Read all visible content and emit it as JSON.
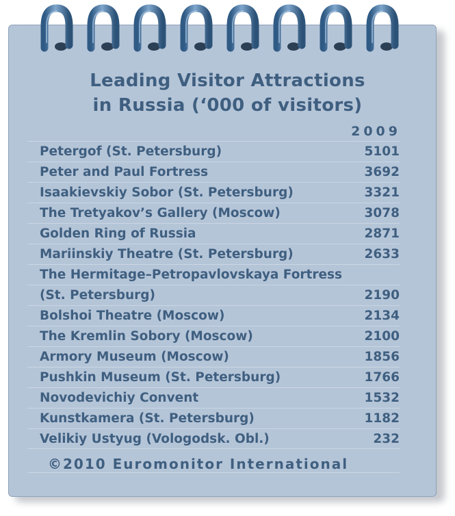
{
  "chart_data": {
    "type": "table",
    "title": "Leading Visitor Attractions in Russia (‘000 of visitors)",
    "title_lines": [
      "Leading Visitor Attractions",
      "in Russia (‘000 of visitors)"
    ],
    "column_header": "2009",
    "rows": [
      {
        "name": "Petergof (St. Petersburg)",
        "value": "5101"
      },
      {
        "name": "Peter and Paul Fortress",
        "value": "3692"
      },
      {
        "name": "Isaakievskiy Sobor (St. Petersburg)",
        "value": "3321"
      },
      {
        "name": "The Tretyakov’s Gallery (Moscow)",
        "value": "3078"
      },
      {
        "name": "Golden Ring of Russia",
        "value": "2871"
      },
      {
        "name": "Mariinskiy Theatre (St. Petersburg)",
        "value": "2633"
      },
      {
        "name": "The Hermitage–Petropavlovskaya Fortress",
        "name_line2": "(St. Petersburg)",
        "value": "2190"
      },
      {
        "name": "Bolshoi Theatre (Moscow)",
        "value": "2134"
      },
      {
        "name": "The Kremlin Sobory (Moscow)",
        "value": "2100"
      },
      {
        "name": "Armory Museum (Moscow)",
        "value": "1856"
      },
      {
        "name": "Pushkin Museum (St. Petersburg)",
        "value": "1766"
      },
      {
        "name": "Novodevichiy Convent",
        "value": "1532"
      },
      {
        "name": "Kunstkamera (St. Petersburg)",
        "value": "1182"
      },
      {
        "name": "Velikiy Ustyug (Vologodsk. Obl.)",
        "value": "232"
      }
    ],
    "footer": "©2010 Euromonitor International"
  },
  "colors": {
    "paper": "#b5c5d8",
    "text": "#3f5f80",
    "ring": "#4f7aa3"
  },
  "icons": {
    "binding": "spiral-ring-icon"
  }
}
